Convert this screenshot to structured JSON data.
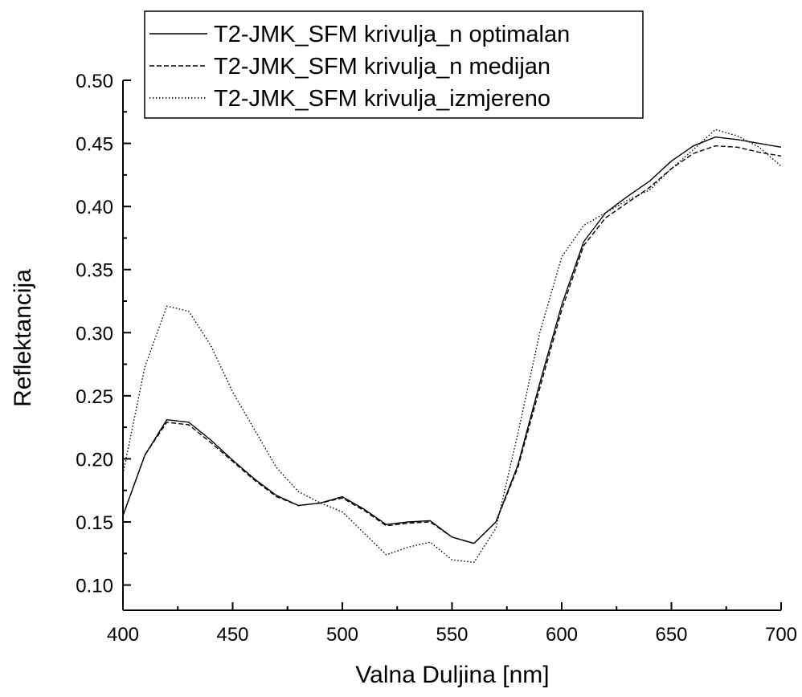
{
  "chart_data": {
    "type": "line",
    "title": "",
    "xlabel": "Valna Duljina [nm]",
    "ylabel": "Reflektancija",
    "xlim": [
      400,
      700
    ],
    "ylim": [
      0.08,
      0.5
    ],
    "x_ticks": [
      400,
      450,
      500,
      550,
      600,
      650,
      700
    ],
    "y_ticks": [
      0.1,
      0.15,
      0.2,
      0.25,
      0.3,
      0.35,
      0.4,
      0.45,
      0.5
    ],
    "x_tick_labels": [
      "400",
      "450",
      "500",
      "550",
      "600",
      "650",
      "700"
    ],
    "y_tick_labels": [
      "0.10",
      "0.15",
      "0.20",
      "0.25",
      "0.30",
      "0.35",
      "0.40",
      "0.45",
      "0.50"
    ],
    "grid": false,
    "legend_position": "top",
    "x": [
      400,
      410,
      420,
      430,
      440,
      450,
      460,
      470,
      480,
      490,
      500,
      510,
      520,
      530,
      540,
      550,
      560,
      570,
      580,
      590,
      600,
      610,
      620,
      630,
      640,
      650,
      660,
      670,
      680,
      690,
      700
    ],
    "series": [
      {
        "name": "T2-JMK_SFM krivulja_n optimalan",
        "line_style": "solid",
        "values": [
          0.155,
          0.203,
          0.231,
          0.229,
          0.215,
          0.199,
          0.184,
          0.171,
          0.163,
          0.165,
          0.17,
          0.16,
          0.148,
          0.15,
          0.151,
          0.138,
          0.133,
          0.15,
          0.195,
          0.26,
          0.322,
          0.372,
          0.395,
          0.408,
          0.42,
          0.436,
          0.448,
          0.455,
          0.453,
          0.45,
          0.447
        ]
      },
      {
        "name": "T2-JMK_SFM krivulja_n medijan",
        "line_style": "dashed",
        "values": [
          0.155,
          0.203,
          0.229,
          0.227,
          0.213,
          0.198,
          0.183,
          0.17,
          0.163,
          0.165,
          0.169,
          0.159,
          0.147,
          0.149,
          0.15,
          0.138,
          0.133,
          0.15,
          0.193,
          0.256,
          0.318,
          0.369,
          0.391,
          0.403,
          0.415,
          0.43,
          0.442,
          0.448,
          0.447,
          0.443,
          0.44
        ]
      },
      {
        "name": "T2-JMK_SFM krivulja_izmjereno",
        "line_style": "dotted",
        "values": [
          0.188,
          0.273,
          0.321,
          0.317,
          0.29,
          0.253,
          0.223,
          0.193,
          0.174,
          0.165,
          0.158,
          0.141,
          0.124,
          0.13,
          0.134,
          0.12,
          0.118,
          0.145,
          0.22,
          0.3,
          0.36,
          0.385,
          0.395,
          0.405,
          0.413,
          0.43,
          0.445,
          0.461,
          0.456,
          0.447,
          0.432
        ]
      }
    ]
  }
}
